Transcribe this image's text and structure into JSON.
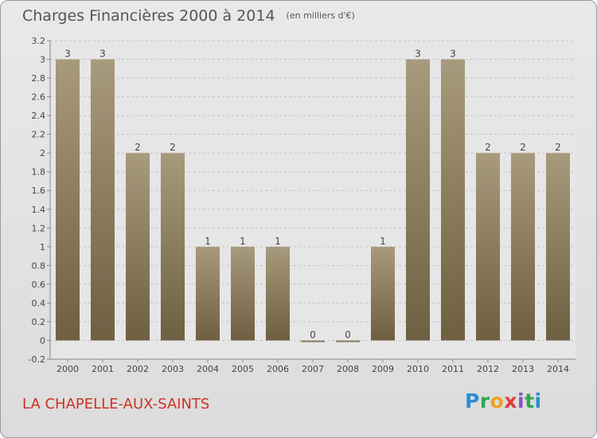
{
  "header": {
    "title": "Charges Financières 2000 à 2014",
    "unit": "(en milliers d'€)"
  },
  "footer": {
    "commune": "LA CHAPELLE-AUX-SAINTS",
    "logo_letters": [
      "P",
      "r",
      "o",
      "x",
      "i",
      "t",
      "i"
    ]
  },
  "colors": {
    "background": "#e3e3e3",
    "bar_top": "#a89a7c",
    "bar_bottom": "#6f5f42",
    "title": "#555555",
    "commune": "#cc3322"
  },
  "chart_data": {
    "type": "bar",
    "title": "Charges Financières 2000 à 2014",
    "subtitle": "(en milliers d'€)",
    "categories": [
      "2000",
      "2001",
      "2002",
      "2003",
      "2004",
      "2005",
      "2006",
      "2007",
      "2008",
      "2009",
      "2010",
      "2011",
      "2012",
      "2013",
      "2014"
    ],
    "values": [
      3,
      3,
      2,
      2,
      1,
      1,
      1,
      0,
      0,
      1,
      3,
      3,
      2,
      2,
      2
    ],
    "data_labels": [
      "3",
      "3",
      "2",
      "2",
      "1",
      "1",
      "1",
      "0",
      "0",
      "1",
      "3",
      "3",
      "2",
      "2",
      "2"
    ],
    "y_ticks": [
      "-0.2",
      "0",
      "0.2",
      "0.4",
      "0.6",
      "0.8",
      "1",
      "1.2",
      "1.4",
      "1.6",
      "1.8",
      "2",
      "2.2",
      "2.4",
      "2.6",
      "2.8",
      "3",
      "3.2"
    ],
    "ylim": [
      -0.2,
      3.2
    ],
    "grid": "horizontal dashed",
    "legend": "none"
  }
}
